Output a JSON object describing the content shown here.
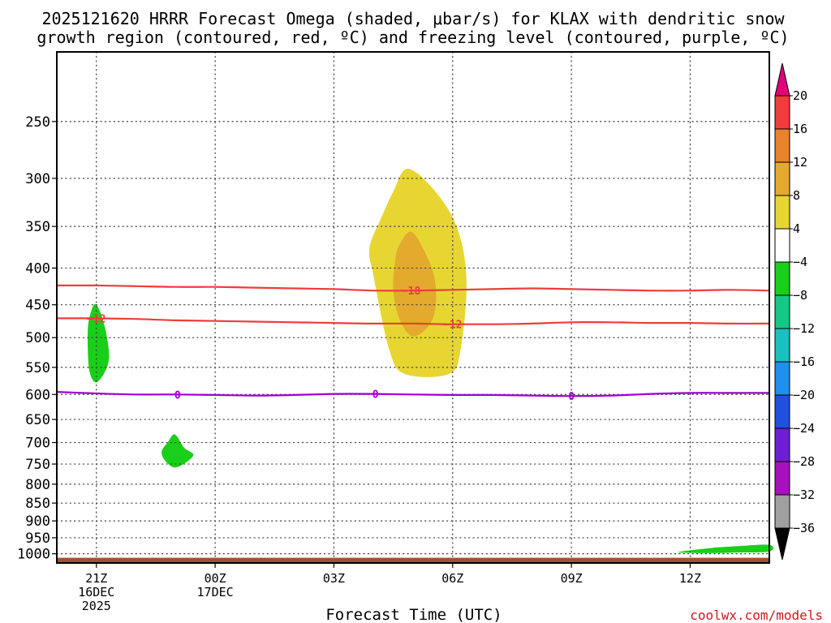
{
  "chart_data": {
    "type": "heatmap",
    "title_line1": "2025121620 HRRR Forecast Omega (shaded, μbar/s) for KLAX with dendritic snow",
    "title_line2": "growth region (contoured, red, ºC) and freezing level (contoured, purple, ºC)",
    "xlabel": "Forecast Time (UTC)",
    "ylabel": "",
    "credit": "coolwx.com/models",
    "x_unit": "hours since 20Z 16 Dec 2025",
    "x_range": [
      0,
      18
    ],
    "y_unit": "hPa",
    "y_range": [
      200,
      1030
    ],
    "y_scale": "log",
    "x_ticks": [
      {
        "x": 1,
        "lines": [
          "21Z",
          "16DEC",
          "2025"
        ]
      },
      {
        "x": 4,
        "lines": [
          "00Z",
          "17DEC"
        ]
      },
      {
        "x": 7,
        "lines": [
          "03Z"
        ]
      },
      {
        "x": 10,
        "lines": [
          "06Z"
        ]
      },
      {
        "x": 13,
        "lines": [
          "09Z"
        ]
      },
      {
        "x": 16,
        "lines": [
          "12Z"
        ]
      }
    ],
    "y_ticks": [
      250,
      300,
      350,
      400,
      450,
      500,
      550,
      600,
      650,
      700,
      750,
      800,
      850,
      900,
      950,
      1000
    ],
    "y_tick_labels": [
      "250",
      "300",
      "350",
      "400",
      "450",
      "500",
      "550",
      "600",
      "650",
      "700",
      "750",
      "800",
      "850",
      "900",
      "950",
      "1000"
    ],
    "grid": true,
    "colorbar": {
      "position": "right",
      "ticks": [
        20,
        16,
        12,
        8,
        4,
        -4,
        -8,
        -12,
        -16,
        -20,
        -24,
        -28,
        -32,
        -36
      ],
      "tick_labels": [
        "20",
        "16",
        "12",
        "8",
        "4",
        "−4",
        "−8",
        "−12",
        "−16",
        "−20",
        "−24",
        "−28",
        "−32",
        "−36"
      ],
      "bins": [
        {
          "lo": 20,
          "hi": null,
          "color": "#e2007a"
        },
        {
          "lo": 16,
          "hi": 20,
          "color": "#f03c3c"
        },
        {
          "lo": 12,
          "hi": 16,
          "color": "#e9822b"
        },
        {
          "lo": 8,
          "hi": 12,
          "color": "#e3aa2e"
        },
        {
          "lo": 4,
          "hi": 8,
          "color": "#e7d632"
        },
        {
          "lo": -4,
          "hi": 4,
          "color": "#ffffff"
        },
        {
          "lo": -8,
          "hi": -4,
          "color": "#19cf19"
        },
        {
          "lo": -12,
          "hi": -8,
          "color": "#16c886"
        },
        {
          "lo": -16,
          "hi": -12,
          "color": "#1ac1c1"
        },
        {
          "lo": -20,
          "hi": -16,
          "color": "#1f8ff0"
        },
        {
          "lo": -24,
          "hi": -20,
          "color": "#2050e0"
        },
        {
          "lo": -28,
          "hi": -24,
          "color": "#6e1fd6"
        },
        {
          "lo": -32,
          "hi": -28,
          "color": "#a90fc0"
        },
        {
          "lo": -36,
          "hi": -32,
          "color": "#a0a0a0"
        },
        {
          "lo": null,
          "hi": -36,
          "color": "#000000"
        }
      ]
    },
    "omega_regions": [
      {
        "name": "omega-region-plus4-main",
        "value_range": [
          4,
          8
        ],
        "color": "#e7d632",
        "points": [
          [
            8.0,
            410
          ],
          [
            7.9,
            375
          ],
          [
            8.2,
            340
          ],
          [
            8.5,
            313
          ],
          [
            8.85,
            291
          ],
          [
            9.5,
            310
          ],
          [
            10.1,
            350
          ],
          [
            10.35,
            415
          ],
          [
            10.2,
            520
          ],
          [
            9.9,
            562
          ],
          [
            8.8,
            562
          ],
          [
            8.4,
            520
          ]
        ]
      },
      {
        "name": "omega-region-plus8-core",
        "value_range": [
          8,
          12
        ],
        "color": "#e3aa2e",
        "points": [
          [
            8.55,
            390
          ],
          [
            8.65,
            372
          ],
          [
            8.95,
            356
          ],
          [
            9.3,
            380
          ],
          [
            9.55,
            415
          ],
          [
            9.55,
            460
          ],
          [
            9.3,
            488
          ],
          [
            8.95,
            497
          ],
          [
            8.65,
            470
          ],
          [
            8.5,
            430
          ]
        ]
      },
      {
        "name": "omega-region-minus4-left",
        "value_range": [
          -8,
          -4
        ],
        "color": "#19cf19",
        "points": [
          [
            0.78,
            500
          ],
          [
            0.82,
            470
          ],
          [
            0.98,
            449
          ],
          [
            1.2,
            480
          ],
          [
            1.32,
            530
          ],
          [
            1.2,
            560
          ],
          [
            0.98,
            577
          ],
          [
            0.82,
            555
          ]
        ]
      },
      {
        "name": "omega-region-minus4-mid",
        "value_range": [
          -8,
          -4
        ],
        "color": "#19cf19",
        "points": [
          [
            2.65,
            720
          ],
          [
            2.8,
            700
          ],
          [
            2.98,
            682
          ],
          [
            3.22,
            712
          ],
          [
            3.45,
            728
          ],
          [
            3.2,
            750
          ],
          [
            2.95,
            758
          ],
          [
            2.72,
            740
          ]
        ]
      },
      {
        "name": "omega-region-minus4-right",
        "value_range": [
          -8,
          -4
        ],
        "color": "#19cf19",
        "points": [
          [
            15.7,
            995
          ],
          [
            16.5,
            982
          ],
          [
            17.2,
            976
          ],
          [
            18.0,
            972
          ],
          [
            18.0,
            993
          ],
          [
            17.2,
            996
          ],
          [
            16.5,
            998
          ]
        ]
      }
    ],
    "contours": [
      {
        "name": "contour-minus18",
        "label": "−18",
        "color": "#ee3c3c",
        "label_x": 8.95,
        "points": [
          [
            0,
            423
          ],
          [
            1,
            423
          ],
          [
            2,
            424
          ],
          [
            3,
            425
          ],
          [
            4,
            425
          ],
          [
            5,
            426
          ],
          [
            6,
            427
          ],
          [
            7,
            428
          ],
          [
            8,
            430
          ],
          [
            9,
            430
          ],
          [
            10,
            429
          ],
          [
            11,
            428
          ],
          [
            12,
            427
          ],
          [
            13,
            428
          ],
          [
            14,
            429
          ],
          [
            15,
            430
          ],
          [
            16,
            430
          ],
          [
            17,
            429
          ],
          [
            18,
            430
          ]
        ]
      },
      {
        "name": "contour-minus12",
        "label": "−12",
        "color": "#ee3c3c",
        "label_x": 1.0,
        "label_x2": 10.0,
        "label2": "−12",
        "points": [
          [
            0,
            470
          ],
          [
            1,
            470
          ],
          [
            2,
            471
          ],
          [
            3,
            473
          ],
          [
            4,
            474
          ],
          [
            5,
            475
          ],
          [
            6,
            476
          ],
          [
            7,
            477
          ],
          [
            8,
            478
          ],
          [
            9,
            478
          ],
          [
            10,
            479
          ],
          [
            11,
            479
          ],
          [
            12,
            478
          ],
          [
            13,
            476
          ],
          [
            14,
            476
          ],
          [
            15,
            477
          ],
          [
            16,
            477
          ],
          [
            17,
            478
          ],
          [
            18,
            478
          ]
        ]
      },
      {
        "name": "contour-zero-freezing-level",
        "label": "0",
        "color": "#a000d0",
        "label_x": 3.05,
        "label_x2": 8.05,
        "label2": "0",
        "label_x3": 13.0,
        "label3": "0",
        "points": [
          [
            0,
            595
          ],
          [
            1,
            598
          ],
          [
            2,
            600
          ],
          [
            3,
            600
          ],
          [
            4,
            601
          ],
          [
            5,
            602
          ],
          [
            6,
            601
          ],
          [
            7,
            599
          ],
          [
            8,
            599
          ],
          [
            9,
            600
          ],
          [
            10,
            601
          ],
          [
            11,
            601
          ],
          [
            12,
            602
          ],
          [
            13,
            603
          ],
          [
            14,
            602
          ],
          [
            15,
            599
          ],
          [
            16,
            597
          ],
          [
            17,
            597
          ],
          [
            18,
            597
          ]
        ]
      }
    ],
    "terrain": {
      "label": "surface",
      "color": "#a0522d",
      "p_top": 1013
    }
  }
}
